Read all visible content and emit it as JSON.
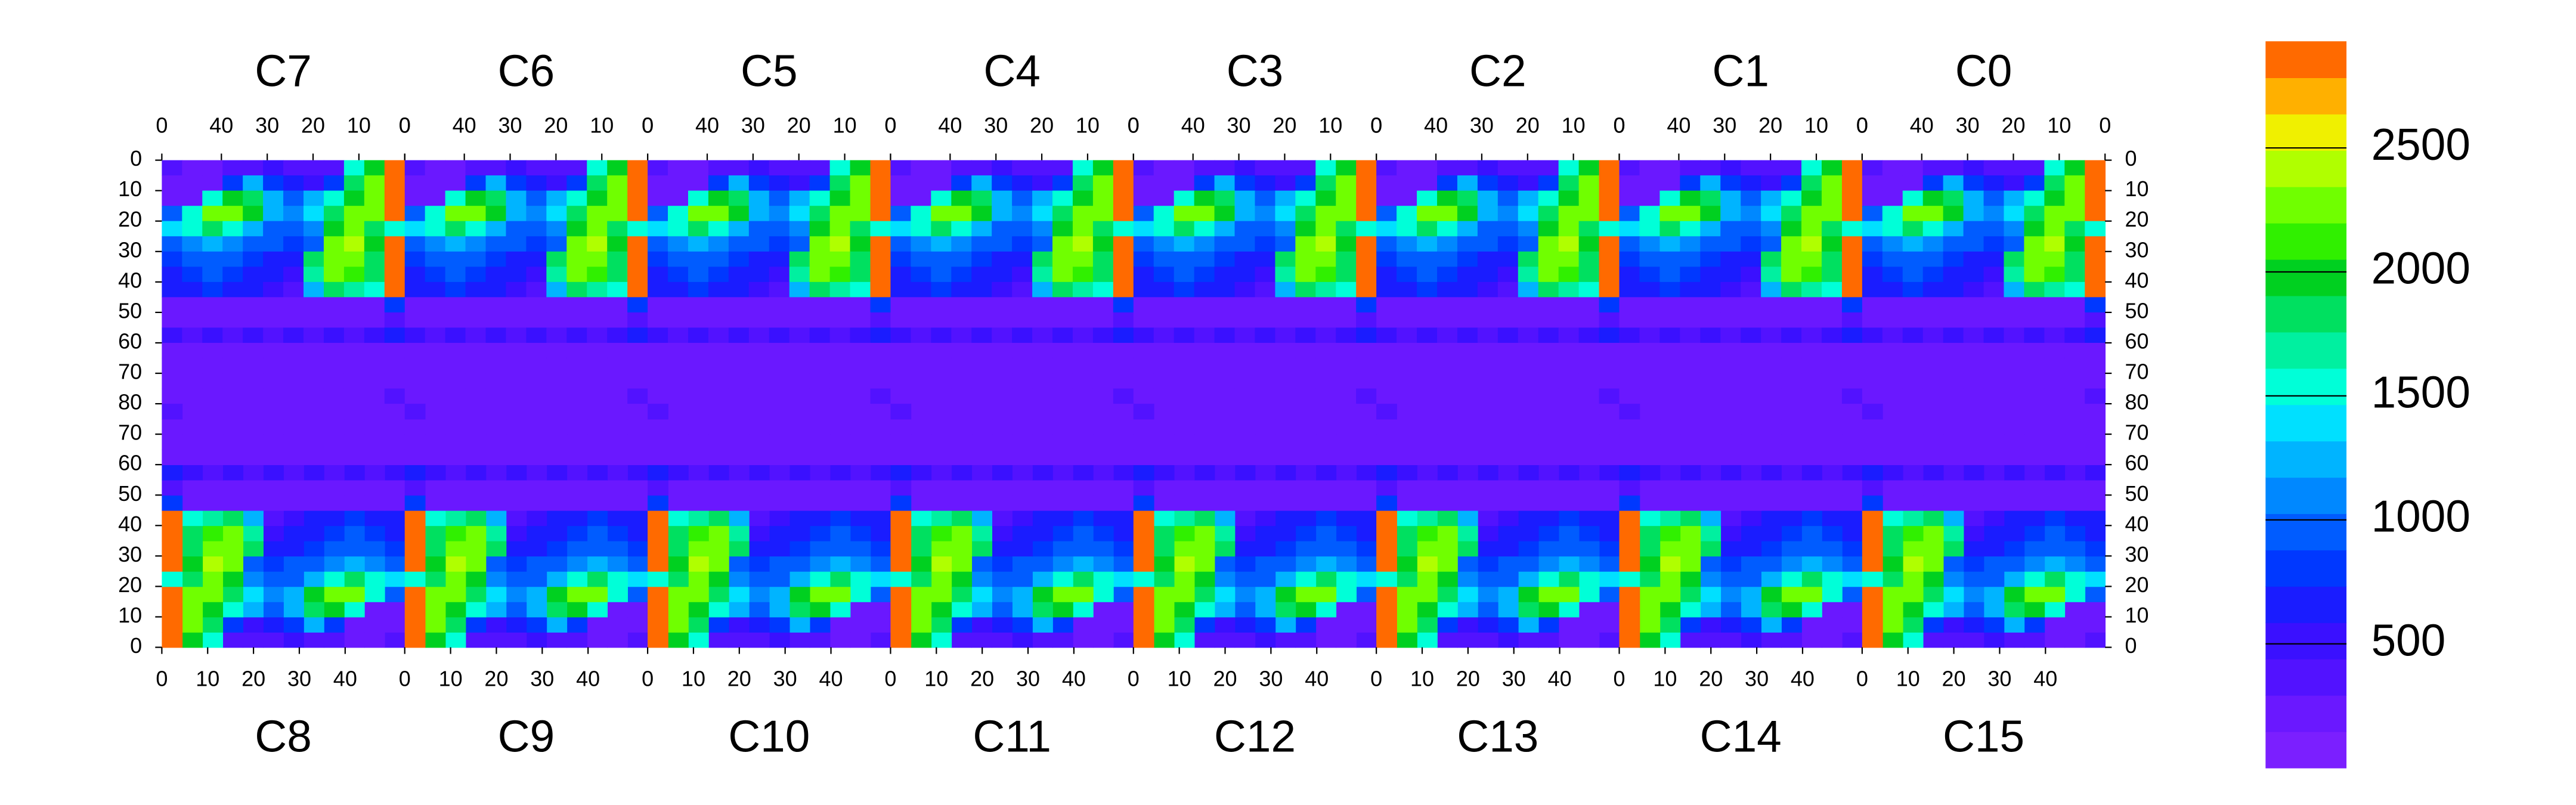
{
  "chart_data": {
    "type": "heatmap",
    "top_panels": [
      "C7",
      "C6",
      "C5",
      "C4",
      "C3",
      "C2",
      "C1",
      "C0"
    ],
    "bottom_panels": [
      "C8",
      "C9",
      "C10",
      "C11",
      "C12",
      "C13",
      "C14",
      "C15"
    ],
    "top_xlim": [
      53,
      0
    ],
    "top_xticks": [
      {
        "value": 53,
        "label": "0"
      },
      40,
      30,
      20,
      10,
      0
    ],
    "bottom_xlim": [
      0,
      53
    ],
    "bottom_xticks": [
      0,
      10,
      20,
      30,
      40
    ],
    "ylim": [
      0,
      160
    ],
    "yticks": [
      0,
      10,
      20,
      30,
      40,
      50,
      60,
      70,
      80,
      {
        "value": 90,
        "label": "70"
      },
      {
        "value": 100,
        "label": "60"
      },
      {
        "value": 110,
        "label": "50"
      },
      {
        "value": 120,
        "label": "40"
      },
      {
        "value": 130,
        "label": "30"
      },
      {
        "value": 140,
        "label": "20"
      },
      {
        "value": 150,
        "label": "10"
      },
      {
        "value": 160,
        "label": "0"
      }
    ],
    "zlim": [
      0,
      2930
    ],
    "zticks": [
      500,
      1000,
      1500,
      2000,
      2500
    ],
    "palette": [
      "#7b1fff",
      "#6a18ff",
      "#5212ff",
      "#3a10ff",
      "#1a1cff",
      "#0038ff",
      "#005cff",
      "#0088ff",
      "#00b4ff",
      "#00e0ff",
      "#00ffd8",
      "#00f0a0",
      "#00e060",
      "#00d020",
      "#30f000",
      "#70ff00",
      "#b0ff00",
      "#f0f000",
      "#ffb000",
      "#ff6a00"
    ],
    "z": [
      [
        300,
        200,
        200,
        300,
        400,
        500,
        400,
        300,
        400,
        1500,
        2000,
        2800
      ],
      [
        200,
        150,
        200,
        800,
        1200,
        800,
        600,
        500,
        800,
        1800,
        2200,
        2800
      ],
      [
        200,
        150,
        1500,
        2000,
        1800,
        1200,
        1000,
        1200,
        1500,
        2000,
        2300,
        2800
      ],
      [
        900,
        1500,
        2200,
        2300,
        2000,
        1300,
        1100,
        1400,
        1800,
        2200,
        2300,
        2800
      ],
      [
        1400,
        1600,
        1800,
        1500,
        1300,
        1000,
        900,
        1100,
        2000,
        2300,
        1800,
        1500
      ],
      [
        1000,
        1100,
        1200,
        1100,
        1000,
        900,
        800,
        900,
        2200,
        2400,
        2000,
        2800
      ],
      [
        800,
        900,
        1000,
        900,
        800,
        700,
        600,
        1900,
        2300,
        2200,
        1900,
        2800
      ],
      [
        700,
        800,
        900,
        800,
        700,
        600,
        500,
        1700,
        2200,
        2100,
        1800,
        2800
      ],
      [
        600,
        700,
        800,
        700,
        600,
        500,
        400,
        1200,
        1800,
        1700,
        1500,
        2800
      ],
      [
        200,
        200,
        200,
        200,
        200,
        200,
        200,
        200,
        200,
        200,
        200,
        800
      ],
      [
        150,
        150,
        150,
        150,
        150,
        150,
        150,
        150,
        150,
        150,
        150,
        300
      ],
      [
        500,
        400,
        450,
        400,
        450,
        400,
        450,
        400,
        450,
        400,
        450,
        600
      ],
      [
        150,
        180,
        150,
        180,
        150,
        180,
        150,
        180,
        150,
        180,
        150,
        250
      ],
      [
        200,
        150,
        200,
        150,
        200,
        150,
        200,
        150,
        200,
        150,
        200,
        250
      ],
      [
        150,
        200,
        150,
        200,
        150,
        200,
        150,
        200,
        150,
        200,
        150,
        250
      ],
      [
        200,
        150,
        200,
        150,
        200,
        150,
        200,
        150,
        200,
        150,
        200,
        300
      ]
    ]
  }
}
